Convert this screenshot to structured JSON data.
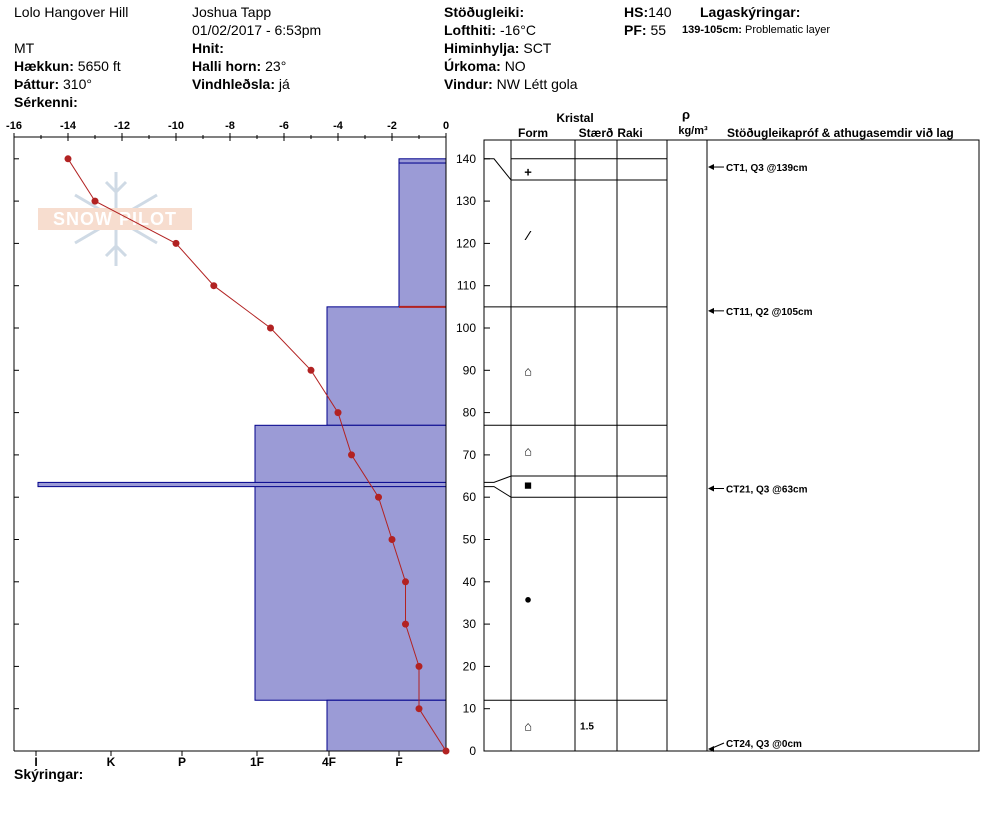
{
  "header": {
    "location": "Lolo Hangover Hill",
    "observer": "Joshua Tapp",
    "datetime": "01/02/2017 - 6:53pm",
    "state": "MT",
    "elevation_label": "Hækkun:",
    "elevation": "5650 ft",
    "aspect_label": "Þáttur:",
    "aspect": "310°",
    "features_label": "Sérkenni:",
    "features": "",
    "coords_label": "Hnit:",
    "coords": "",
    "slope_label": "Halli horn:",
    "slope": "23°",
    "wind_loading_label": "Vindhleðsla:",
    "wind_loading": "já",
    "stability_label": "Stöðugleiki:",
    "stability": "",
    "air_temp_label": "Lofthiti:",
    "air_temp": "-16°C",
    "sky_label": "Himinhylja:",
    "sky": "SCT",
    "precip_label": "Úrkoma:",
    "precip": "NO",
    "wind_label": "Vindur:",
    "wind": "NW Létt gola",
    "hs_label": "HS:",
    "hs": "140",
    "pf_label": "PF:",
    "pf": "55",
    "layer_notes_label": "Lagaskýringar:",
    "layer_note_range": "139-105cm:",
    "layer_note_text": "Problematic layer"
  },
  "footer": {
    "notes_label": "Skýringar:"
  },
  "watermark": {
    "text": "SNOW PILOT"
  },
  "columns": {
    "crystal": "Kristal",
    "form": "Form",
    "size": "Stærð",
    "moisture": "Raki",
    "rho": "ρ",
    "density_unit": "kg/m³",
    "tests": "Stöðugleikapróf & athugasemdir við lag"
  },
  "colors": {
    "hardness_fill": "#9b9bd6",
    "hardness_stroke": "#00008b",
    "temp": "#b22222",
    "weak_layer": "#b22222"
  },
  "chart_data": {
    "type": "line",
    "temp_axis": {
      "ticks": [
        -16,
        -14,
        -12,
        -10,
        -8,
        -6,
        -4,
        -2,
        0
      ]
    },
    "height_axis": {
      "ylim": [
        0,
        145
      ],
      "ticks": [
        0,
        10,
        20,
        30,
        40,
        50,
        60,
        70,
        80,
        90,
        100,
        110,
        120,
        130,
        140
      ]
    },
    "hardness_axis": {
      "labels": [
        "I",
        "K",
        "P",
        "1F",
        "4F",
        "F"
      ]
    },
    "temperature_profile": [
      {
        "h": 140,
        "t": -14
      },
      {
        "h": 130,
        "t": -13
      },
      {
        "h": 120,
        "t": -10
      },
      {
        "h": 110,
        "t": -8.6
      },
      {
        "h": 100,
        "t": -6.5
      },
      {
        "h": 90,
        "t": -5
      },
      {
        "h": 80,
        "t": -4
      },
      {
        "h": 70,
        "t": -3.5
      },
      {
        "h": 60,
        "t": -2.5
      },
      {
        "h": 50,
        "t": -2
      },
      {
        "h": 40,
        "t": -1.5
      },
      {
        "h": 30,
        "t": -1.5
      },
      {
        "h": 20,
        "t": -1
      },
      {
        "h": 10,
        "t": -1
      },
      {
        "h": 0,
        "t": 0
      }
    ],
    "hardness_layers": [
      {
        "bottom": 139,
        "top": 140,
        "hardness": "F"
      },
      {
        "bottom": 105,
        "top": 139,
        "hardness": "F"
      },
      {
        "bottom": 77,
        "top": 105,
        "hardness": "4F"
      },
      {
        "bottom": 12,
        "top": 77,
        "hardness": "1F"
      },
      {
        "bottom": 0,
        "top": 12,
        "hardness": "4F"
      },
      {
        "bottom": 62.5,
        "top": 63.5,
        "hardness": "I"
      }
    ],
    "weak_layer": {
      "height": 105
    },
    "layer_boundaries": [
      140,
      135,
      105,
      77,
      65,
      60,
      12,
      0
    ],
    "grain_forms": [
      {
        "h": 137,
        "symbol": "+"
      },
      {
        "h": 122,
        "symbol": "⁄"
      },
      {
        "h": 90,
        "symbol": "⌂"
      },
      {
        "h": 71,
        "symbol": "⌂"
      },
      {
        "h": 63,
        "symbol": "■"
      },
      {
        "h": 36,
        "symbol": "●"
      },
      {
        "h": 6,
        "symbol": "⌂",
        "size": "1.5"
      }
    ],
    "tests": [
      {
        "h": 139,
        "text": "CT1, Q3 @139cm"
      },
      {
        "h": 105,
        "text": "CT11, Q2 @105cm"
      },
      {
        "h": 63,
        "text": "CT21, Q3 @63cm"
      },
      {
        "h": 0,
        "text": "CT24, Q3 @0cm"
      }
    ]
  }
}
